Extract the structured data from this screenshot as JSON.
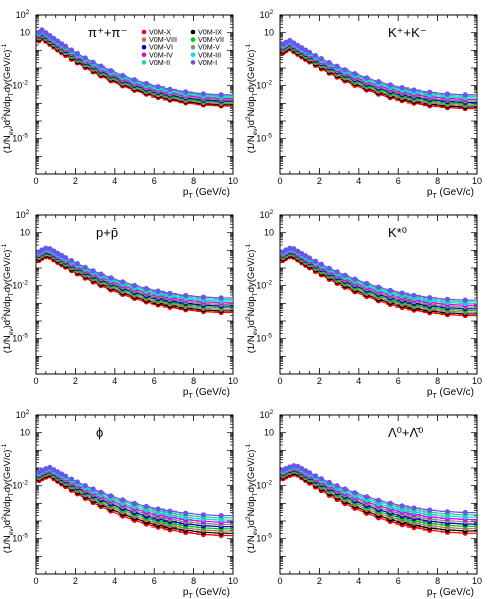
{
  "figure": {
    "x_axis_label_main": "p",
    "x_axis_label_sub": "T",
    "x_axis_label_unit": "(GeV/c)",
    "y_axis_label": "(1/N",
    "y_axis_label_ev": "ev",
    "y_axis_label_rest": ")d",
    "y_axis_label_2": "2",
    "y_axis_label_rest2": "N/dp",
    "y_axis_label_T": "T",
    "y_axis_label_dy": "dy(GeV/c)",
    "y_axis_label_exp": "-1"
  },
  "legend": {
    "entries": [
      {
        "label": "V0M-X",
        "color": "#ff0000"
      },
      {
        "label": "V0M-IX",
        "color": "#000000"
      },
      {
        "label": "V0M-VIII",
        "color": "#c0706a"
      },
      {
        "label": "V0M-VII",
        "color": "#00cc00"
      },
      {
        "label": "V0M-VI",
        "color": "#0000c0"
      },
      {
        "label": "V0M-V",
        "color": "#888888"
      },
      {
        "label": "V0M-IV",
        "color": "#e000e0"
      },
      {
        "label": "V0M-III",
        "color": "#00dddd"
      },
      {
        "label": "V0M-II",
        "color": "#33cc99"
      },
      {
        "label": "V0M-I",
        "color": "#6655ee"
      }
    ]
  },
  "chart_data": [
    {
      "type": "scatter",
      "particle_label": "π⁺+π⁻",
      "xlim": [
        0,
        10
      ],
      "ylim_exp": [
        -7,
        2
      ],
      "yscale": "log",
      "x_ticks": [
        "0",
        "2",
        "4",
        "6",
        "8",
        "10"
      ],
      "y_ticks": [
        {
          "exp": 2,
          "label": "10",
          "sup": "2"
        },
        {
          "exp": 1,
          "label": "10",
          "sup": ""
        },
        {
          "exp": -2,
          "label": "10",
          "sup": "-2"
        },
        {
          "exp": -5,
          "label": "10",
          "sup": "-5"
        }
      ],
      "peak_x": 0.3,
      "peak_y": 8,
      "end_y_low": 0.0007,
      "end_y_high": 0.003
    },
    {
      "type": "scatter",
      "particle_label": "K⁺+K⁻",
      "xlim": [
        0,
        10
      ],
      "ylim_exp": [
        -7,
        2
      ],
      "yscale": "log",
      "x_ticks": [
        "0",
        "2",
        "4",
        "6",
        "8",
        "10"
      ],
      "y_ticks": [
        {
          "exp": 2,
          "label": "10",
          "sup": "2"
        },
        {
          "exp": 1,
          "label": "10",
          "sup": ""
        },
        {
          "exp": -2,
          "label": "10",
          "sup": "-2"
        },
        {
          "exp": -5,
          "label": "10",
          "sup": "-5"
        }
      ],
      "peak_x": 0.5,
      "peak_y": 2,
      "end_y_low": 0.0005,
      "end_y_high": 0.003
    },
    {
      "type": "scatter",
      "particle_label": "p+p̄",
      "xlim": [
        0,
        10
      ],
      "ylim_exp": [
        -7,
        2
      ],
      "yscale": "log",
      "x_ticks": [
        "0",
        "2",
        "4",
        "6",
        "8",
        "10"
      ],
      "y_ticks": [
        {
          "exp": 2,
          "label": "10",
          "sup": "2"
        },
        {
          "exp": 1,
          "label": "10",
          "sup": ""
        },
        {
          "exp": -2,
          "label": "10",
          "sup": "-2"
        },
        {
          "exp": -5,
          "label": "10",
          "sup": "-5"
        }
      ],
      "peak_x": 0.6,
      "peak_y": 0.8,
      "end_y_low": 0.0003,
      "end_y_high": 0.002
    },
    {
      "type": "scatter",
      "particle_label": "K*⁰",
      "xlim": [
        0,
        10
      ],
      "ylim_exp": [
        -7,
        2
      ],
      "yscale": "log",
      "x_ticks": [
        "0",
        "2",
        "4",
        "6",
        "8",
        "10"
      ],
      "y_ticks": [
        {
          "exp": 2,
          "label": "10",
          "sup": "2"
        },
        {
          "exp": 1,
          "label": "10",
          "sup": ""
        },
        {
          "exp": -2,
          "label": "10",
          "sup": "-2"
        },
        {
          "exp": -5,
          "label": "10",
          "sup": "-5"
        }
      ],
      "peak_x": 0.6,
      "peak_y": 0.8,
      "end_y_low": 0.0002,
      "end_y_high": 0.0015
    },
    {
      "type": "scatter",
      "particle_label": "ϕ",
      "xlim": [
        0,
        10
      ],
      "ylim_exp": [
        -7,
        2
      ],
      "yscale": "log",
      "x_ticks": [
        "0",
        "2",
        "4",
        "6",
        "8",
        "10"
      ],
      "y_ticks": [
        {
          "exp": 2,
          "label": "10",
          "sup": "2"
        },
        {
          "exp": 1,
          "label": "10",
          "sup": ""
        },
        {
          "exp": -2,
          "label": "10",
          "sup": "-2"
        },
        {
          "exp": -5,
          "label": "10",
          "sup": "-5"
        }
      ],
      "peak_x": 0.7,
      "peak_y": 0.06,
      "end_y_low": 1.5e-05,
      "end_y_high": 0.0002
    },
    {
      "type": "scatter",
      "particle_label": "Λ⁰+Λ̄⁰",
      "xlim": [
        0,
        10
      ],
      "ylim_exp": [
        -7,
        2
      ],
      "yscale": "log",
      "x_ticks": [
        "0",
        "2",
        "4",
        "6",
        "8",
        "10"
      ],
      "y_ticks": [
        {
          "exp": 2,
          "label": "10",
          "sup": "2"
        },
        {
          "exp": 1,
          "label": "10",
          "sup": ""
        },
        {
          "exp": -2,
          "label": "10",
          "sup": "-2"
        },
        {
          "exp": -5,
          "label": "10",
          "sup": "-5"
        }
      ],
      "peak_x": 0.8,
      "peak_y": 0.08,
      "end_y_low": 2e-05,
      "end_y_high": 0.0003
    }
  ]
}
